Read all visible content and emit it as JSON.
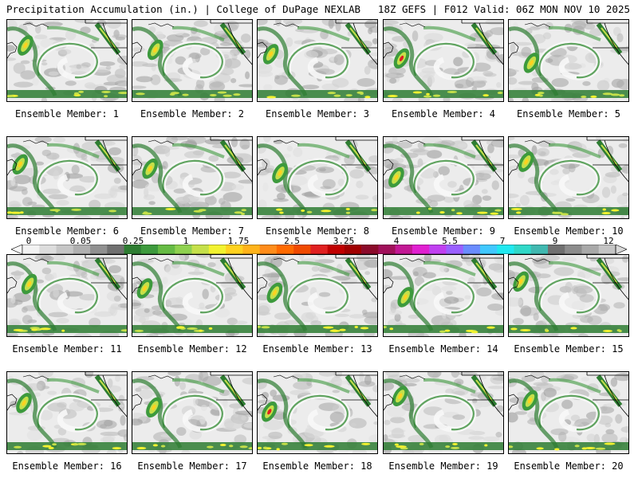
{
  "header": {
    "title": "Precipitation Accumulation (in.) | College of DuPage NEXLAB",
    "valid": "18Z GEFS | F012 Valid: 06Z MON NOV 10 2025"
  },
  "member_label_prefix": "Ensemble Member:",
  "members": [
    {
      "label": "Ensemble Member: 1"
    },
    {
      "label": "Ensemble Member: 2"
    },
    {
      "label": "Ensemble Member: 3"
    },
    {
      "label": "Ensemble Member: 4"
    },
    {
      "label": "Ensemble Member: 5"
    },
    {
      "label": "Ensemble Member: 6"
    },
    {
      "label": "Ensemble Member: 7"
    },
    {
      "label": "Ensemble Member: 8"
    },
    {
      "label": "Ensemble Member: 9"
    },
    {
      "label": "Ensemble Member: 10"
    },
    {
      "label": "Ensemble Member: 11"
    },
    {
      "label": "Ensemble Member: 12"
    },
    {
      "label": "Ensemble Member: 13"
    },
    {
      "label": "Ensemble Member: 14"
    },
    {
      "label": "Ensemble Member: 15"
    },
    {
      "label": "Ensemble Member: 16"
    },
    {
      "label": "Ensemble Member: 17"
    },
    {
      "label": "Ensemble Member: 18"
    },
    {
      "label": "Ensemble Member: 19"
    },
    {
      "label": "Ensemble Member: 20"
    }
  ],
  "colorbar": {
    "tick_labels": [
      "0",
      "0.05",
      "0.25",
      "1",
      "1.75",
      "2.5",
      "3.25",
      "4",
      "5.5",
      "7",
      "9",
      "12"
    ],
    "colors": [
      "#f2f2f2",
      "#dcdcdc",
      "#c6c6c6",
      "#b0b0b0",
      "#909090",
      "#707070",
      "#2e7d32",
      "#3d9a3d",
      "#66bb44",
      "#8fd14f",
      "#c5e04a",
      "#f2f230",
      "#ffd21f",
      "#ffb31a",
      "#ff8c1a",
      "#ff6a00",
      "#f04a00",
      "#e02020",
      "#c00000",
      "#a00000",
      "#8b0a2a",
      "#a0105a",
      "#c21894",
      "#e020d0",
      "#c040f0",
      "#9a60ff",
      "#6a8cff",
      "#40c8ff",
      "#20e8f0",
      "#30d8c8",
      "#40b8b0",
      "#707070",
      "#8c8c8c",
      "#a8a8a8",
      "#c4c4c4"
    ]
  }
}
